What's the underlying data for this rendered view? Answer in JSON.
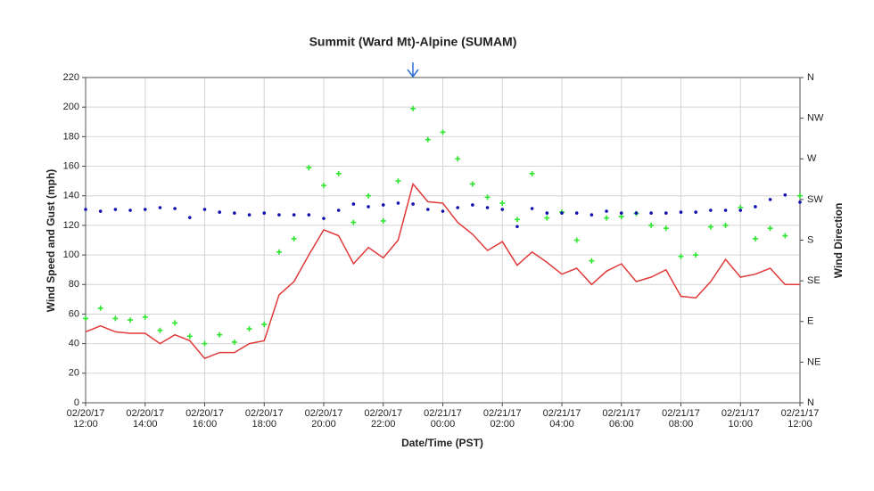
{
  "chart_data": {
    "type": "line",
    "title": "Summit (Ward Mt)-Alpine (SUMAM)",
    "xlabel": "Date/Time (PST)",
    "ylabel": "Wind Speed and Gust (mph)",
    "y2label": "Wind Direction",
    "x": [
      "02/20/17 12:00",
      "02/20/17 12:30",
      "02/20/17 13:00",
      "02/20/17 13:30",
      "02/20/17 14:00",
      "02/20/17 14:30",
      "02/20/17 15:00",
      "02/20/17 15:30",
      "02/20/17 16:00",
      "02/20/17 16:30",
      "02/20/17 17:00",
      "02/20/17 17:30",
      "02/20/17 18:00",
      "02/20/17 18:30",
      "02/20/17 19:00",
      "02/20/17 19:30",
      "02/20/17 20:00",
      "02/20/17 20:30",
      "02/20/17 21:00",
      "02/20/17 21:30",
      "02/20/17 22:00",
      "02/20/17 22:30",
      "02/20/17 23:00",
      "02/20/17 23:30",
      "02/21/17 00:00",
      "02/21/17 00:30",
      "02/21/17 01:00",
      "02/21/17 01:30",
      "02/21/17 02:00",
      "02/21/17 02:30",
      "02/21/17 03:00",
      "02/21/17 03:30",
      "02/21/17 04:00",
      "02/21/17 04:30",
      "02/21/17 05:00",
      "02/21/17 05:30",
      "02/21/17 06:00",
      "02/21/17 06:30",
      "02/21/17 07:00",
      "02/21/17 07:30",
      "02/21/17 08:00",
      "02/21/17 08:30",
      "02/21/17 09:00",
      "02/21/17 09:30",
      "02/21/17 10:00",
      "02/21/17 10:30",
      "02/21/17 11:00",
      "02/21/17 11:30",
      "02/21/17 12:00"
    ],
    "series": [
      {
        "type": "line",
        "color": "#e03a3a",
        "values": [
          48,
          52,
          48,
          47,
          47,
          40,
          46,
          42,
          30,
          34,
          34,
          40,
          42,
          73,
          82,
          100,
          117,
          113,
          94,
          105,
          98,
          110,
          148,
          136,
          135,
          122,
          114,
          103,
          109,
          93,
          102,
          95,
          87,
          91,
          80,
          89,
          94,
          82,
          85,
          90,
          72,
          71,
          82,
          97,
          85,
          87,
          91,
          80,
          80
        ]
      },
      {
        "type": "scatter",
        "marker": "plus",
        "color": "#2fe62f",
        "values": [
          57,
          64,
          57,
          56,
          58,
          49,
          54,
          45,
          40,
          46,
          41,
          50,
          53,
          102,
          111,
          159,
          147,
          155,
          122,
          140,
          123,
          150,
          199,
          178,
          183,
          165,
          148,
          139,
          135,
          124,
          155,
          125,
          129,
          110,
          96,
          125,
          126,
          128,
          120,
          118,
          99,
          100,
          119,
          120,
          132,
          111,
          118,
          113,
          140
        ]
      },
      {
        "type": "scatter",
        "marker": "dot",
        "color": "#1010b0",
        "axis": "y2",
        "values": [
          214,
          212,
          214,
          213,
          214,
          216,
          215,
          205,
          214,
          211,
          210,
          208,
          210,
          208,
          208,
          208,
          204,
          213,
          220,
          217,
          219,
          221,
          220,
          214,
          212,
          216,
          219,
          216,
          214,
          195,
          215,
          210,
          210,
          210,
          208,
          212,
          210,
          210,
          210,
          210,
          211,
          211,
          213,
          213,
          213,
          217,
          225,
          230,
          222
        ]
      }
    ],
    "xlim": [
      "02/20/17 12:00",
      "02/21/17 12:00"
    ],
    "xticks": [
      "02/20/17 12:00",
      "02/20/17 14:00",
      "02/20/17 16:00",
      "02/20/17 18:00",
      "02/20/17 20:00",
      "02/20/17 22:00",
      "02/21/17 00:00",
      "02/21/17 02:00",
      "02/21/17 04:00",
      "02/21/17 06:00",
      "02/21/17 08:00",
      "02/21/17 10:00",
      "02/21/17 12:00"
    ],
    "ylim": [
      0,
      220
    ],
    "yticks": [
      0,
      20,
      40,
      60,
      80,
      100,
      120,
      140,
      160,
      180,
      200,
      220
    ],
    "y2lim": [
      0,
      360
    ],
    "y2ticks": [
      {
        "value": 0,
        "label": "N"
      },
      {
        "value": 45,
        "label": "NE"
      },
      {
        "value": 90,
        "label": "E"
      },
      {
        "value": 135,
        "label": "SE"
      },
      {
        "value": 180,
        "label": "S"
      },
      {
        "value": 225,
        "label": "SW"
      },
      {
        "value": 270,
        "label": "W"
      },
      {
        "value": 315,
        "label": "NW"
      },
      {
        "value": 360,
        "label": "N"
      }
    ],
    "grid": true
  }
}
